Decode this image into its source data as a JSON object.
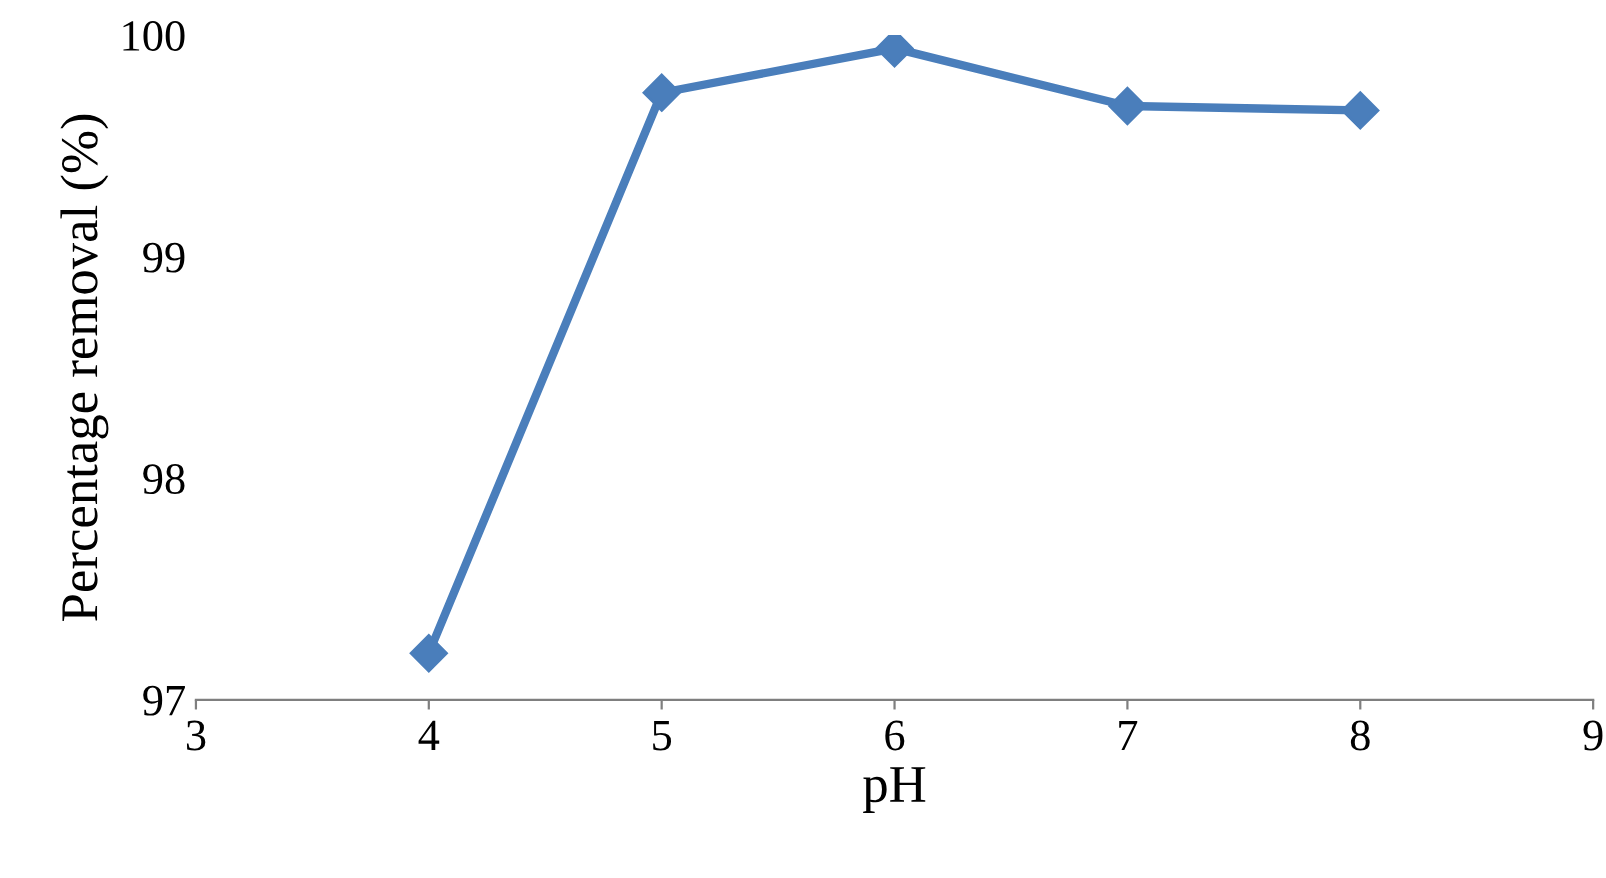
{
  "chart_data": {
    "type": "line",
    "xlabel": "pH",
    "ylabel": "Percentage removal (%)",
    "x": [
      4,
      5,
      6,
      7,
      8
    ],
    "series": [
      {
        "color": "#4a7ebb",
        "values": [
          97.21,
          99.74,
          99.94,
          99.68,
          99.66
        ]
      }
    ],
    "xlim": [
      3,
      9
    ],
    "xticks": [
      3,
      4,
      5,
      6,
      7,
      8,
      9
    ],
    "ylim": [
      97,
      100
    ],
    "yticks": [
      97,
      98,
      99,
      100
    ],
    "grid": false,
    "legend": false,
    "marker": "diamond",
    "line_style": "solid"
  }
}
